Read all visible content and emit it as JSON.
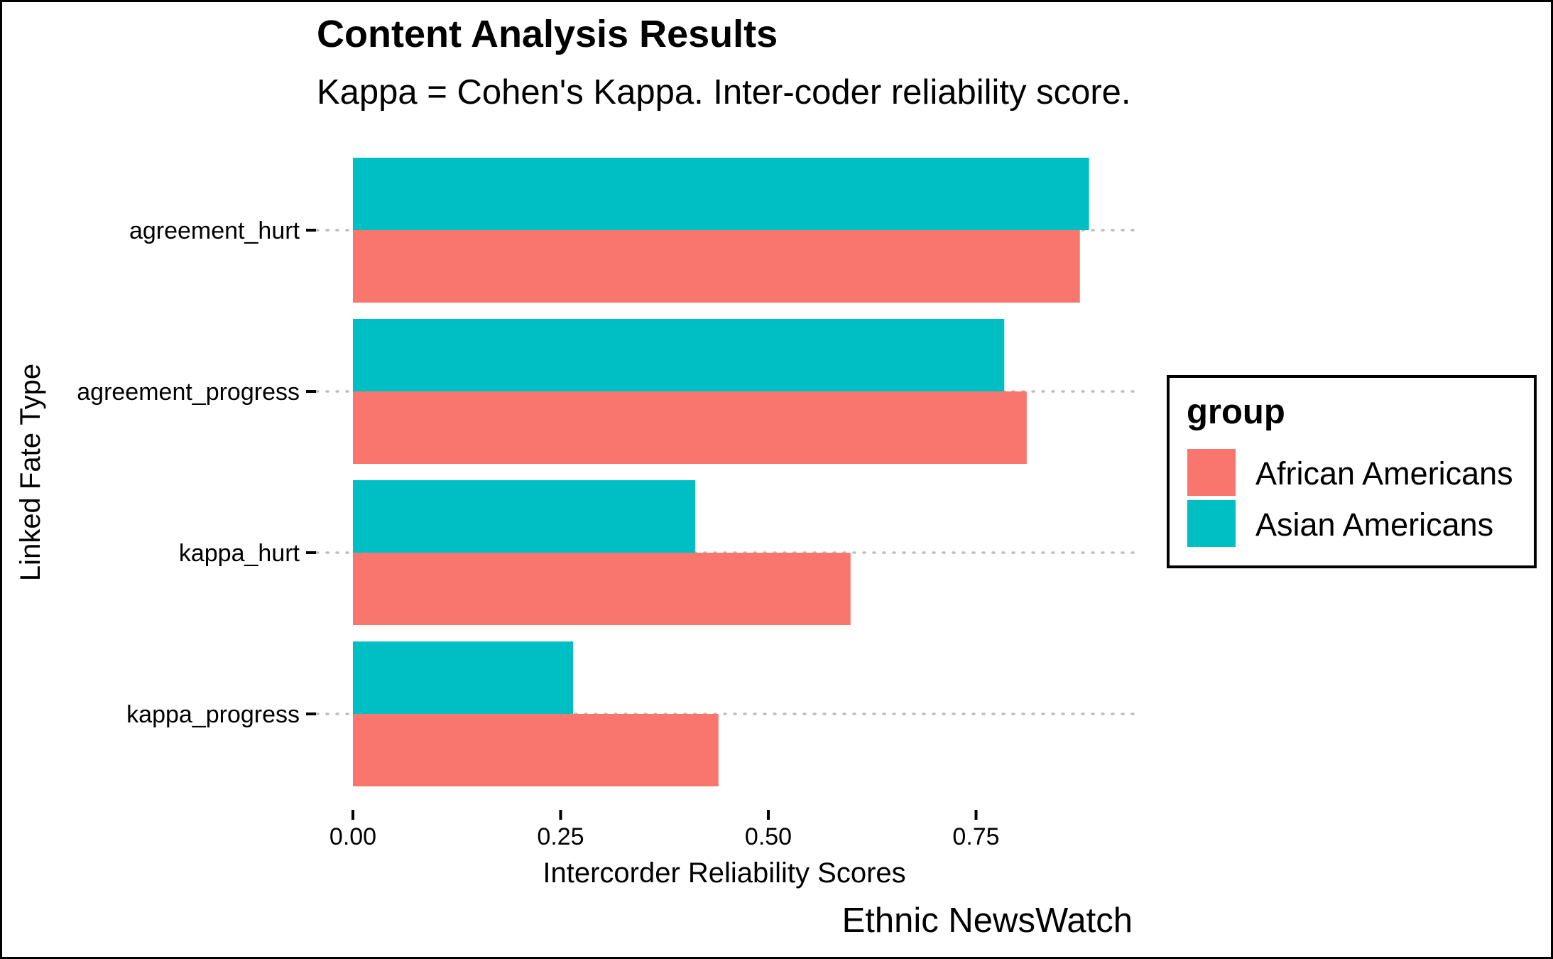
{
  "chart_data": {
    "type": "bar",
    "orientation": "horizontal",
    "title": "Content Analysis Results",
    "subtitle": "Kappa = Cohen's Kappa. Inter-coder reliability score.",
    "caption": "Ethnic NewsWatch",
    "xlabel": "Intercorder Reliability Scores",
    "ylabel": "Linked Fate Type",
    "xlim": [
      0,
      0.92
    ],
    "x_ticks": [
      0,
      0.25,
      0.5,
      0.75
    ],
    "x_tick_labels": [
      "0.00",
      "0.25",
      "0.50",
      "0.75"
    ],
    "categories": [
      "agreement_hurt",
      "agreement_progress",
      "kappa_hurt",
      "kappa_progress"
    ],
    "series": [
      {
        "name": "African Americans",
        "color": "#F8766D",
        "values": [
          0.875,
          0.811,
          0.599,
          0.44
        ]
      },
      {
        "name": "Asian Americans",
        "color": "#00BFC4",
        "values": [
          0.886,
          0.784,
          0.412,
          0.265
        ]
      }
    ],
    "grid": {
      "major_y": "dotted",
      "major_x": false
    },
    "legend": {
      "title": "group",
      "position": "right"
    }
  }
}
